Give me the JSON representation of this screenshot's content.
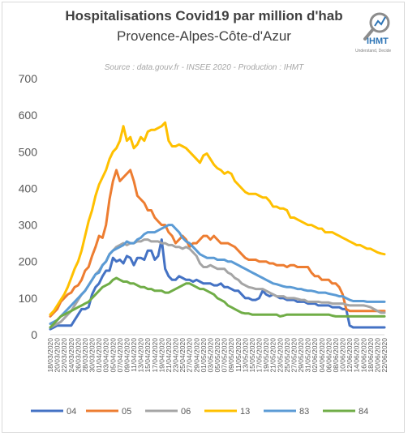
{
  "header": {
    "title": "Hospitalisations Covid19 par million d'hab",
    "subtitle": "Provence-Alpes-Côte-d'Azur",
    "source": "Source : data.gouv.fr - INSEE 2020 - Production : IHMT"
  },
  "logo": {
    "text": "IHMT",
    "tagline": "Understand, Decide",
    "icon": "chart-magnifier-icon"
  },
  "chart_data": {
    "type": "line",
    "ylim": [
      0,
      700
    ],
    "yticks": [
      0,
      100,
      200,
      300,
      400,
      500,
      600,
      700
    ],
    "grid": false,
    "legend_position": "bottom",
    "x": [
      "18/03/2020",
      "19/03/2020",
      "20/03/2020",
      "21/03/2020",
      "22/03/2020",
      "23/03/2020",
      "24/03/2020",
      "25/03/2020",
      "26/03/2020",
      "27/03/2020",
      "28/03/2020",
      "29/03/2020",
      "30/03/2020",
      "31/03/2020",
      "01/04/2020",
      "02/04/2020",
      "03/04/2020",
      "04/04/2020",
      "05/04/2020",
      "06/04/2020",
      "07/04/2020",
      "08/04/2020",
      "09/04/2020",
      "10/04/2020",
      "11/04/2020",
      "12/04/2020",
      "13/04/2020",
      "14/04/2020",
      "15/04/2020",
      "16/04/2020",
      "17/04/2020",
      "18/04/2020",
      "19/04/2020",
      "20/04/2020",
      "21/04/2020",
      "22/04/2020",
      "23/04/2020",
      "24/04/2020",
      "25/04/2020",
      "26/04/2020",
      "27/04/2020",
      "28/04/2020",
      "29/04/2020",
      "30/04/2020",
      "01/05/2020",
      "02/05/2020",
      "03/05/2020",
      "04/05/2020",
      "05/05/2020",
      "06/05/2020",
      "07/05/2020",
      "08/05/2020",
      "09/05/2020",
      "10/05/2020",
      "11/05/2020",
      "12/05/2020",
      "13/05/2020",
      "14/05/2020",
      "15/05/2020",
      "16/05/2020",
      "17/05/2020",
      "18/05/2020",
      "19/05/2020",
      "20/05/2020",
      "21/05/2020",
      "22/05/2020",
      "23/05/2020",
      "24/05/2020",
      "25/05/2020",
      "26/05/2020",
      "27/05/2020",
      "28/05/2020",
      "29/05/2020",
      "30/05/2020",
      "31/05/2020",
      "01/06/2020",
      "02/06/2020",
      "03/06/2020",
      "04/06/2020",
      "05/06/2020",
      "06/06/2020",
      "07/06/2020",
      "08/06/2020",
      "09/06/2020",
      "10/06/2020",
      "11/06/2020",
      "12/06/2020",
      "13/06/2020",
      "14/06/2020",
      "15/06/2020",
      "16/06/2020",
      "17/06/2020",
      "18/06/2020",
      "19/06/2020",
      "20/06/2020",
      "21/06/2020",
      "22/06/2020"
    ],
    "xtick_labels": [
      "18/03/2020",
      "20/03/2020",
      "22/03/2020",
      "24/03/2020",
      "26/03/2020",
      "28/03/2020",
      "30/03/2020",
      "01/04/2020",
      "03/04/2020",
      "05/04/2020",
      "07/04/2020",
      "09/04/2020",
      "11/04/2020",
      "13/04/2020",
      "15/04/2020",
      "17/04/2020",
      "19/04/2020",
      "21/04/2020",
      "23/04/2020",
      "25/04/2020",
      "27/04/2020",
      "29/04/2020",
      "01/05/2020",
      "03/05/2020",
      "05/05/2020",
      "07/05/2020",
      "09/05/2020",
      "11/05/2020",
      "13/05/2020",
      "15/05/2020",
      "17/05/2020",
      "19/05/2020",
      "21/05/2020",
      "23/05/2020",
      "25/05/2020",
      "27/05/2020",
      "29/05/2020",
      "31/05/2020",
      "02/06/2020",
      "04/06/2020",
      "06/06/2020",
      "08/06/2020",
      "10/06/2020",
      "12/06/2020",
      "14/06/2020",
      "16/06/2020",
      "18/06/2020",
      "20/06/2020",
      "22/06/2020"
    ],
    "series": [
      {
        "name": "04",
        "color": "#4472c4",
        "values": [
          15,
          20,
          25,
          25,
          25,
          25,
          25,
          40,
          55,
          70,
          70,
          75,
          110,
          130,
          140,
          160,
          175,
          175,
          210,
          200,
          205,
          195,
          215,
          210,
          190,
          210,
          210,
          205,
          230,
          230,
          205,
          215,
          260,
          180,
          160,
          150,
          150,
          160,
          155,
          150,
          150,
          145,
          150,
          145,
          140,
          140,
          140,
          135,
          135,
          140,
          130,
          130,
          125,
          120,
          120,
          110,
          100,
          100,
          95,
          95,
          100,
          120,
          110,
          105,
          110,
          105,
          100,
          100,
          95,
          95,
          95,
          90,
          90,
          90,
          85,
          85,
          85,
          80,
          80,
          80,
          80,
          75,
          75,
          75,
          70,
          70,
          25,
          20,
          20,
          20,
          20,
          20,
          20,
          20,
          20,
          20,
          20
        ]
      },
      {
        "name": "05",
        "color": "#ed7d31",
        "values": [
          50,
          60,
          70,
          90,
          100,
          110,
          115,
          130,
          135,
          150,
          175,
          185,
          215,
          240,
          270,
          265,
          300,
          370,
          420,
          450,
          420,
          430,
          440,
          450,
          420,
          380,
          370,
          360,
          340,
          340,
          320,
          310,
          300,
          300,
          280,
          270,
          250,
          260,
          270,
          260,
          240,
          250,
          250,
          260,
          270,
          270,
          260,
          270,
          260,
          250,
          250,
          250,
          245,
          240,
          230,
          220,
          210,
          205,
          205,
          205,
          200,
          200,
          200,
          195,
          195,
          190,
          190,
          190,
          185,
          190,
          190,
          185,
          185,
          185,
          185,
          170,
          160,
          160,
          150,
          150,
          150,
          140,
          140,
          130,
          110,
          70,
          65,
          65,
          65,
          65,
          65,
          65,
          65,
          65,
          65,
          65,
          65
        ]
      },
      {
        "name": "06",
        "color": "#a5a5a5",
        "values": [
          20,
          25,
          30,
          35,
          45,
          55,
          65,
          80,
          95,
          110,
          120,
          135,
          150,
          165,
          175,
          190,
          200,
          220,
          230,
          240,
          245,
          250,
          245,
          250,
          250,
          255,
          255,
          260,
          260,
          255,
          255,
          255,
          250,
          250,
          245,
          245,
          240,
          240,
          235,
          240,
          235,
          225,
          215,
          195,
          185,
          185,
          190,
          185,
          180,
          180,
          180,
          170,
          165,
          155,
          150,
          140,
          135,
          130,
          128,
          125,
          125,
          125,
          120,
          115,
          110,
          105,
          105,
          105,
          100,
          100,
          100,
          98,
          95,
          95,
          90,
          90,
          90,
          90,
          88,
          88,
          88,
          85,
          85,
          85,
          85,
          82,
          80,
          80,
          80,
          80,
          80,
          78,
          75,
          70,
          65,
          60,
          60
        ]
      },
      {
        "name": "13",
        "color": "#ffc000",
        "values": [
          55,
          65,
          80,
          95,
          110,
          130,
          155,
          180,
          200,
          230,
          270,
          310,
          340,
          380,
          410,
          430,
          450,
          480,
          500,
          510,
          530,
          570,
          530,
          540,
          510,
          520,
          540,
          530,
          555,
          560,
          560,
          565,
          570,
          580,
          530,
          515,
          515,
          520,
          515,
          510,
          500,
          490,
          480,
          470,
          490,
          495,
          480,
          465,
          455,
          450,
          440,
          445,
          440,
          420,
          410,
          400,
          390,
          385,
          385,
          385,
          380,
          375,
          375,
          365,
          350,
          350,
          345,
          345,
          340,
          320,
          320,
          315,
          310,
          305,
          300,
          300,
          295,
          290,
          290,
          280,
          280,
          280,
          275,
          270,
          265,
          260,
          255,
          250,
          245,
          245,
          240,
          235,
          235,
          230,
          225,
          222,
          220
        ]
      },
      {
        "name": "83",
        "color": "#5b9bd5",
        "values": [
          30,
          35,
          40,
          50,
          60,
          70,
          80,
          90,
          100,
          110,
          120,
          135,
          150,
          165,
          170,
          190,
          200,
          220,
          230,
          235,
          240,
          245,
          255,
          250,
          250,
          260,
          265,
          275,
          280,
          280,
          280,
          285,
          290,
          295,
          300,
          300,
          290,
          280,
          265,
          255,
          250,
          240,
          230,
          220,
          215,
          210,
          210,
          210,
          205,
          205,
          205,
          200,
          200,
          195,
          190,
          185,
          180,
          175,
          170,
          165,
          160,
          155,
          150,
          145,
          140,
          138,
          135,
          132,
          130,
          130,
          128,
          125,
          125,
          122,
          120,
          120,
          118,
          115,
          115,
          115,
          112,
          110,
          108,
          105,
          105,
          100,
          95,
          92,
          92,
          92,
          92,
          90,
          90,
          90,
          90,
          90,
          90
        ]
      },
      {
        "name": "84",
        "color": "#70ad47",
        "values": [
          20,
          30,
          40,
          50,
          55,
          60,
          65,
          70,
          75,
          80,
          85,
          90,
          100,
          110,
          120,
          130,
          135,
          140,
          150,
          155,
          150,
          145,
          145,
          140,
          140,
          135,
          130,
          130,
          125,
          125,
          120,
          120,
          120,
          115,
          115,
          120,
          125,
          130,
          135,
          140,
          140,
          135,
          130,
          125,
          125,
          120,
          115,
          110,
          100,
          95,
          90,
          80,
          75,
          70,
          65,
          60,
          58,
          58,
          55,
          55,
          55,
          55,
          55,
          55,
          55,
          55,
          50,
          52,
          55,
          55,
          55,
          55,
          55,
          55,
          55,
          55,
          55,
          55,
          55,
          55,
          55,
          52,
          50,
          50,
          50,
          50,
          50,
          50,
          50,
          50,
          50,
          50,
          50,
          50,
          50,
          50,
          50
        ]
      }
    ]
  }
}
